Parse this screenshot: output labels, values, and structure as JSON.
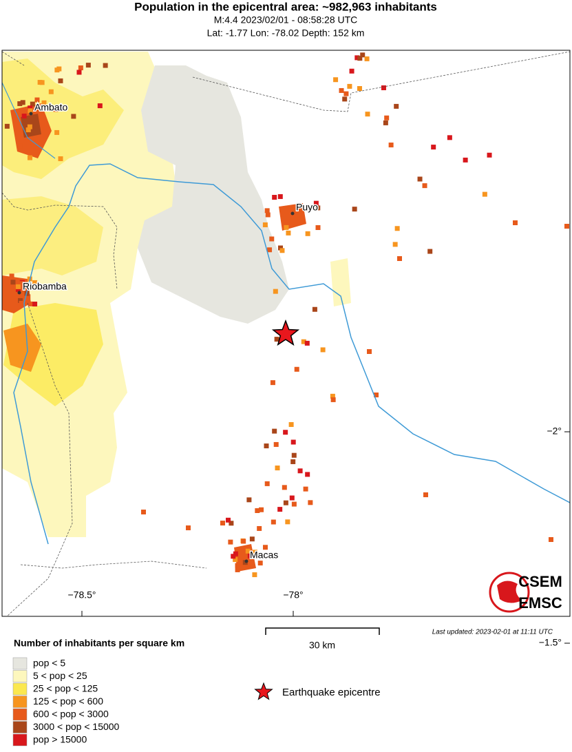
{
  "header": {
    "title": "Population in the epicentral area: ~982,963 inhabitants",
    "line1": "M:4.4 2023/02/01 - 08:58:28 UTC",
    "line2": "Lat: -1.77 Lon: -78.02 Depth: 152 km"
  },
  "map": {
    "cities": [
      "Ambato",
      "Riobamba",
      "Puyo",
      "Macas"
    ],
    "lon_ticks": [
      {
        "value": -78.5,
        "label": "−78.5°"
      },
      {
        "value": -78,
        "label": "−78°"
      }
    ],
    "lat_ticks": [
      {
        "value": -1.5,
        "label": "−1.5°"
      },
      {
        "value": -2,
        "label": "−2°"
      }
    ],
    "scale_label": "30 km",
    "last_updated": "Last updated: 2023-02-01 at 11:11 UTC",
    "logo": [
      "CSEM",
      "EMSC"
    ]
  },
  "legend": {
    "title": "Number of inhabitants per square km",
    "items": [
      {
        "label": "pop < 5",
        "color": "#e6e6df"
      },
      {
        "label": "5 < pop < 25",
        "color": "#fdf7bd"
      },
      {
        "label": "25 < pop < 125",
        "color": "#fbe84f"
      },
      {
        "label": "125 < pop < 600",
        "color": "#f7951f"
      },
      {
        "label": "600 < pop < 3000",
        "color": "#e75a1b"
      },
      {
        "label": "3000 < pop < 15000",
        "color": "#a9461a"
      },
      {
        "label": "pop > 15000",
        "color": "#d8171c"
      }
    ],
    "epicentre": "Earthquake epicentre"
  }
}
